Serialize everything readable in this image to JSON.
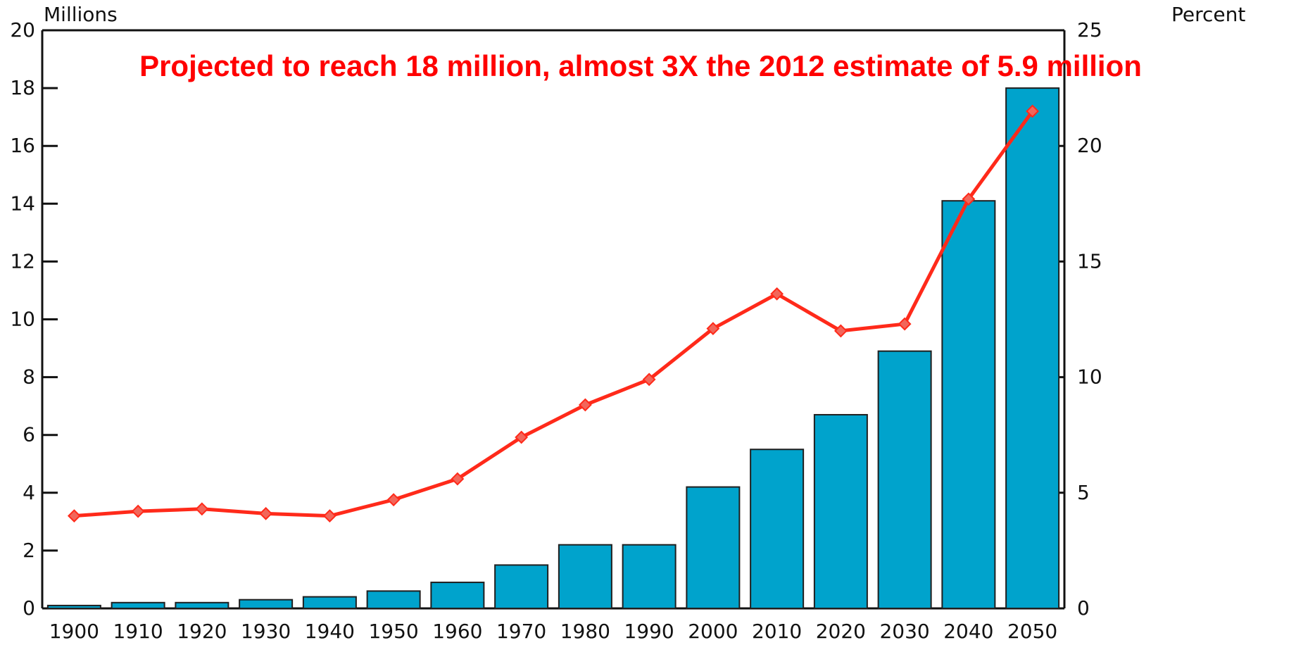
{
  "chart_data": {
    "type": "bar",
    "categories": [
      "1900",
      "1910",
      "1920",
      "1930",
      "1940",
      "1950",
      "1960",
      "1970",
      "1980",
      "1990",
      "2000",
      "2010",
      "2020",
      "2030",
      "2040",
      "2050"
    ],
    "series": [
      {
        "type": "bar",
        "axis": "left",
        "values": [
          0.1,
          0.2,
          0.2,
          0.3,
          0.4,
          0.6,
          0.9,
          1.5,
          2.2,
          2.2,
          4.2,
          5.5,
          6.7,
          8.9,
          14.1,
          18.0
        ]
      },
      {
        "type": "line",
        "axis": "right",
        "values": [
          4.0,
          4.2,
          4.3,
          4.1,
          4.0,
          4.7,
          5.6,
          7.4,
          8.8,
          9.9,
          12.1,
          13.6,
          12.0,
          12.3,
          17.7,
          21.5
        ]
      }
    ],
    "left_axis": {
      "label": "Millions",
      "ylim": [
        0,
        20
      ],
      "ticks": [
        0,
        2,
        4,
        6,
        8,
        10,
        12,
        14,
        16,
        18,
        20
      ]
    },
    "right_axis": {
      "label": "Percent",
      "ylim": [
        0,
        25
      ],
      "ticks": [
        0,
        5,
        10,
        15,
        20,
        25
      ]
    },
    "annotation": "Projected to reach 18 million, almost 3X the 2012 estimate of 5.9 million",
    "grid": false,
    "colors": {
      "bar_fill": "#00a3cc",
      "bar_stroke": "#1f1f1f",
      "line": "#ff2a1a",
      "marker": "#f2665a",
      "annotation": "#ff0000",
      "axis": "#111111"
    }
  }
}
